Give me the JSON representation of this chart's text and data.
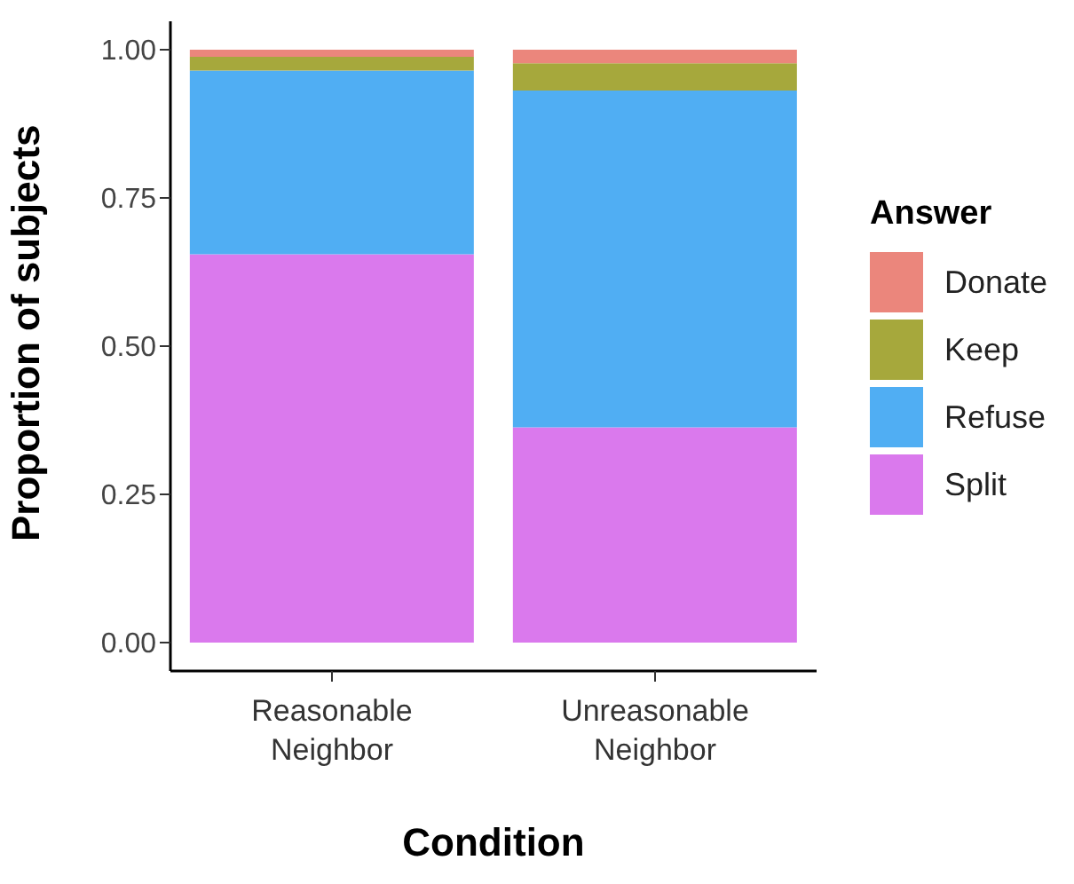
{
  "chart_data": {
    "type": "bar",
    "stacked": true,
    "xlabel": "Condition",
    "ylabel": "Proportion of subjects",
    "legend_title": "Answer",
    "legend": "right",
    "grid": false,
    "categories": [
      "Reasonable Neighbor",
      "Unreasonable Neighbor"
    ],
    "series": [
      {
        "name": "Split",
        "color": "#da79ed",
        "values": [
          0.655,
          0.363
        ]
      },
      {
        "name": "Refuse",
        "color": "#50aef3",
        "values": [
          0.31,
          0.568
        ]
      },
      {
        "name": "Keep",
        "color": "#a6a83c",
        "values": [
          0.023,
          0.046
        ]
      },
      {
        "name": "Donate",
        "color": "#eb867c",
        "values": [
          0.012,
          0.023
        ]
      }
    ],
    "ylim": [
      0,
      1
    ],
    "yticks": [
      {
        "value": 0,
        "label": "0.00"
      },
      {
        "value": 0.25,
        "label": "0.25"
      },
      {
        "value": 0.5,
        "label": "0.50"
      },
      {
        "value": 0.75,
        "label": "0.75"
      },
      {
        "value": 1,
        "label": "1.00"
      }
    ]
  }
}
